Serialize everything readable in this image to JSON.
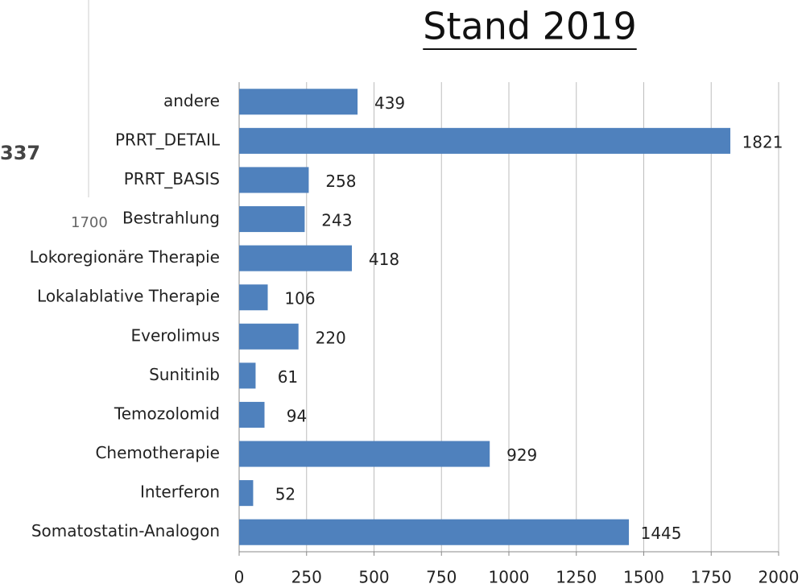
{
  "chart_data": {
    "type": "barh",
    "title": "Stand 2019",
    "categories": [
      "andere",
      "PRRT_DETAIL",
      "PRRT_BASIS",
      "Bestrahlung",
      "Lokoregionäre Therapie",
      "Lokalablative Therapie",
      "Everolimus",
      "Sunitinib",
      "Temozolomid",
      "Chemotherapie",
      "Interferon",
      "Somatostatin-Analogon"
    ],
    "values": [
      439,
      1821,
      258,
      243,
      418,
      106,
      220,
      61,
      94,
      929,
      52,
      1445
    ],
    "color": "#4f81bd",
    "xlim": [
      0,
      2000
    ],
    "xticks": [
      0,
      250,
      500,
      750,
      1000,
      1250,
      1500,
      1750,
      2000
    ],
    "grid": true,
    "annotations": [
      "337",
      "1700"
    ]
  }
}
